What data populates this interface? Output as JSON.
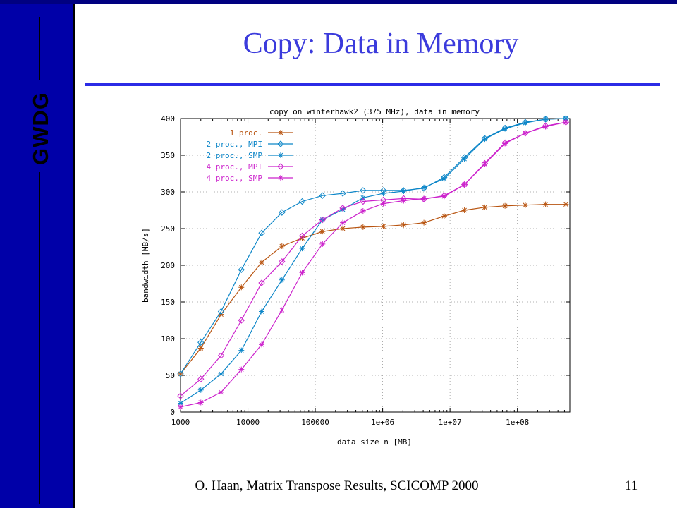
{
  "slide": {
    "title": "Copy: Data in Memory",
    "logo_text": "GWDG",
    "footer": "O. Haan, Matrix Transpose Results, SCICOMP 2000",
    "page_number": "11"
  },
  "colors": {
    "sidebar": "#0000a8",
    "title": "#3b3bdc",
    "rule": "#2b2be6"
  },
  "chart_data": {
    "type": "line",
    "title": "copy on winterhawk2 (375 MHz), data in memory",
    "xlabel": "data size n [MB]",
    "ylabel": "bandwidth [MB/s]",
    "x_scale": "log",
    "xlim": [
      1000,
      600000000
    ],
    "ylim": [
      0,
      400
    ],
    "x_ticks": [
      1000,
      10000,
      100000,
      1000000,
      10000000,
      100000000
    ],
    "x_tick_labels": [
      "1000",
      "10000",
      "100000",
      "1e+06",
      "1e+07",
      "1e+08"
    ],
    "y_ticks": [
      0,
      50,
      100,
      150,
      200,
      250,
      300,
      350,
      400
    ],
    "y_tick_labels": [
      "0",
      "50",
      "100",
      "150",
      "200",
      "250",
      "300",
      "350",
      "400"
    ],
    "grid": true,
    "legend_position": "top-left",
    "x": [
      1000,
      2000,
      4000,
      8000,
      16000,
      32000,
      64000,
      128000,
      256000,
      512000,
      1024000,
      2048000,
      4096000,
      8192000,
      16384000,
      32768000,
      65536000,
      131072000,
      262144000,
      524288000
    ],
    "series": [
      {
        "name": "1 proc.",
        "color": "#b85410",
        "marker": "star",
        "values": [
          52,
          87,
          133,
          170,
          204,
          226,
          237,
          246,
          250,
          252,
          253,
          255,
          258,
          267,
          275,
          279,
          281,
          282,
          283,
          283
        ]
      },
      {
        "name": "2 proc., MPI",
        "color": "#0c86c8",
        "marker": "diamond",
        "values": [
          52,
          95,
          137,
          194,
          244,
          272,
          287,
          295,
          298,
          302,
          302,
          302,
          305,
          320,
          347,
          373,
          387,
          395,
          399,
          400
        ]
      },
      {
        "name": "2 proc., SMP",
        "color": "#0c86c8",
        "marker": "star",
        "values": [
          12,
          30,
          52,
          84,
          137,
          180,
          223,
          262,
          276,
          292,
          298,
          301,
          306,
          318,
          345,
          372,
          386,
          394,
          399,
          400
        ]
      },
      {
        "name": "4 proc., MPI",
        "color": "#cc22cc",
        "marker": "diamond",
        "values": [
          22,
          45,
          77,
          125,
          176,
          205,
          240,
          262,
          278,
          287,
          289,
          291,
          290,
          295,
          310,
          339,
          367,
          380,
          390,
          395
        ]
      },
      {
        "name": "4 proc., SMP",
        "color": "#cc22cc",
        "marker": "star",
        "values": [
          7,
          13,
          27,
          58,
          92,
          139,
          190,
          229,
          258,
          274,
          284,
          288,
          291,
          294,
          310,
          338,
          366,
          380,
          389,
          395
        ]
      }
    ]
  }
}
